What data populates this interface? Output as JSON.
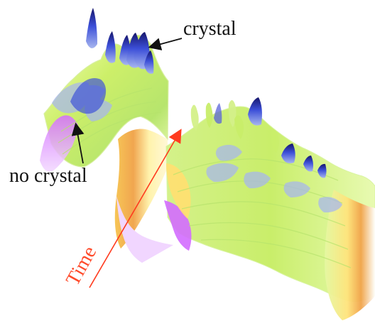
{
  "labels": {
    "crystal": "crystal",
    "no_crystal": "no crystal",
    "time": "Time"
  },
  "colors": {
    "background": "#ffffff",
    "label_text": "#111111",
    "time_arrow": "#ff3b1f",
    "surface_green": "#c9ee6a",
    "surface_light_green": "#e5f8a2",
    "surface_yellow": "#ffe071",
    "surface_orange": "#f3a14a",
    "surface_purple": "#d36cff",
    "peak_blue": "#3c4fd8",
    "peak_dark_blue": "#16166b",
    "peak_light_blue": "#a7b6ef"
  },
  "figure": {
    "type": "3d-surface-photo",
    "annotations": [
      {
        "label": "crystal",
        "arrow": true
      },
      {
        "label": "no crystal",
        "arrow": true
      },
      {
        "label": "Time",
        "arrow": true
      }
    ]
  }
}
